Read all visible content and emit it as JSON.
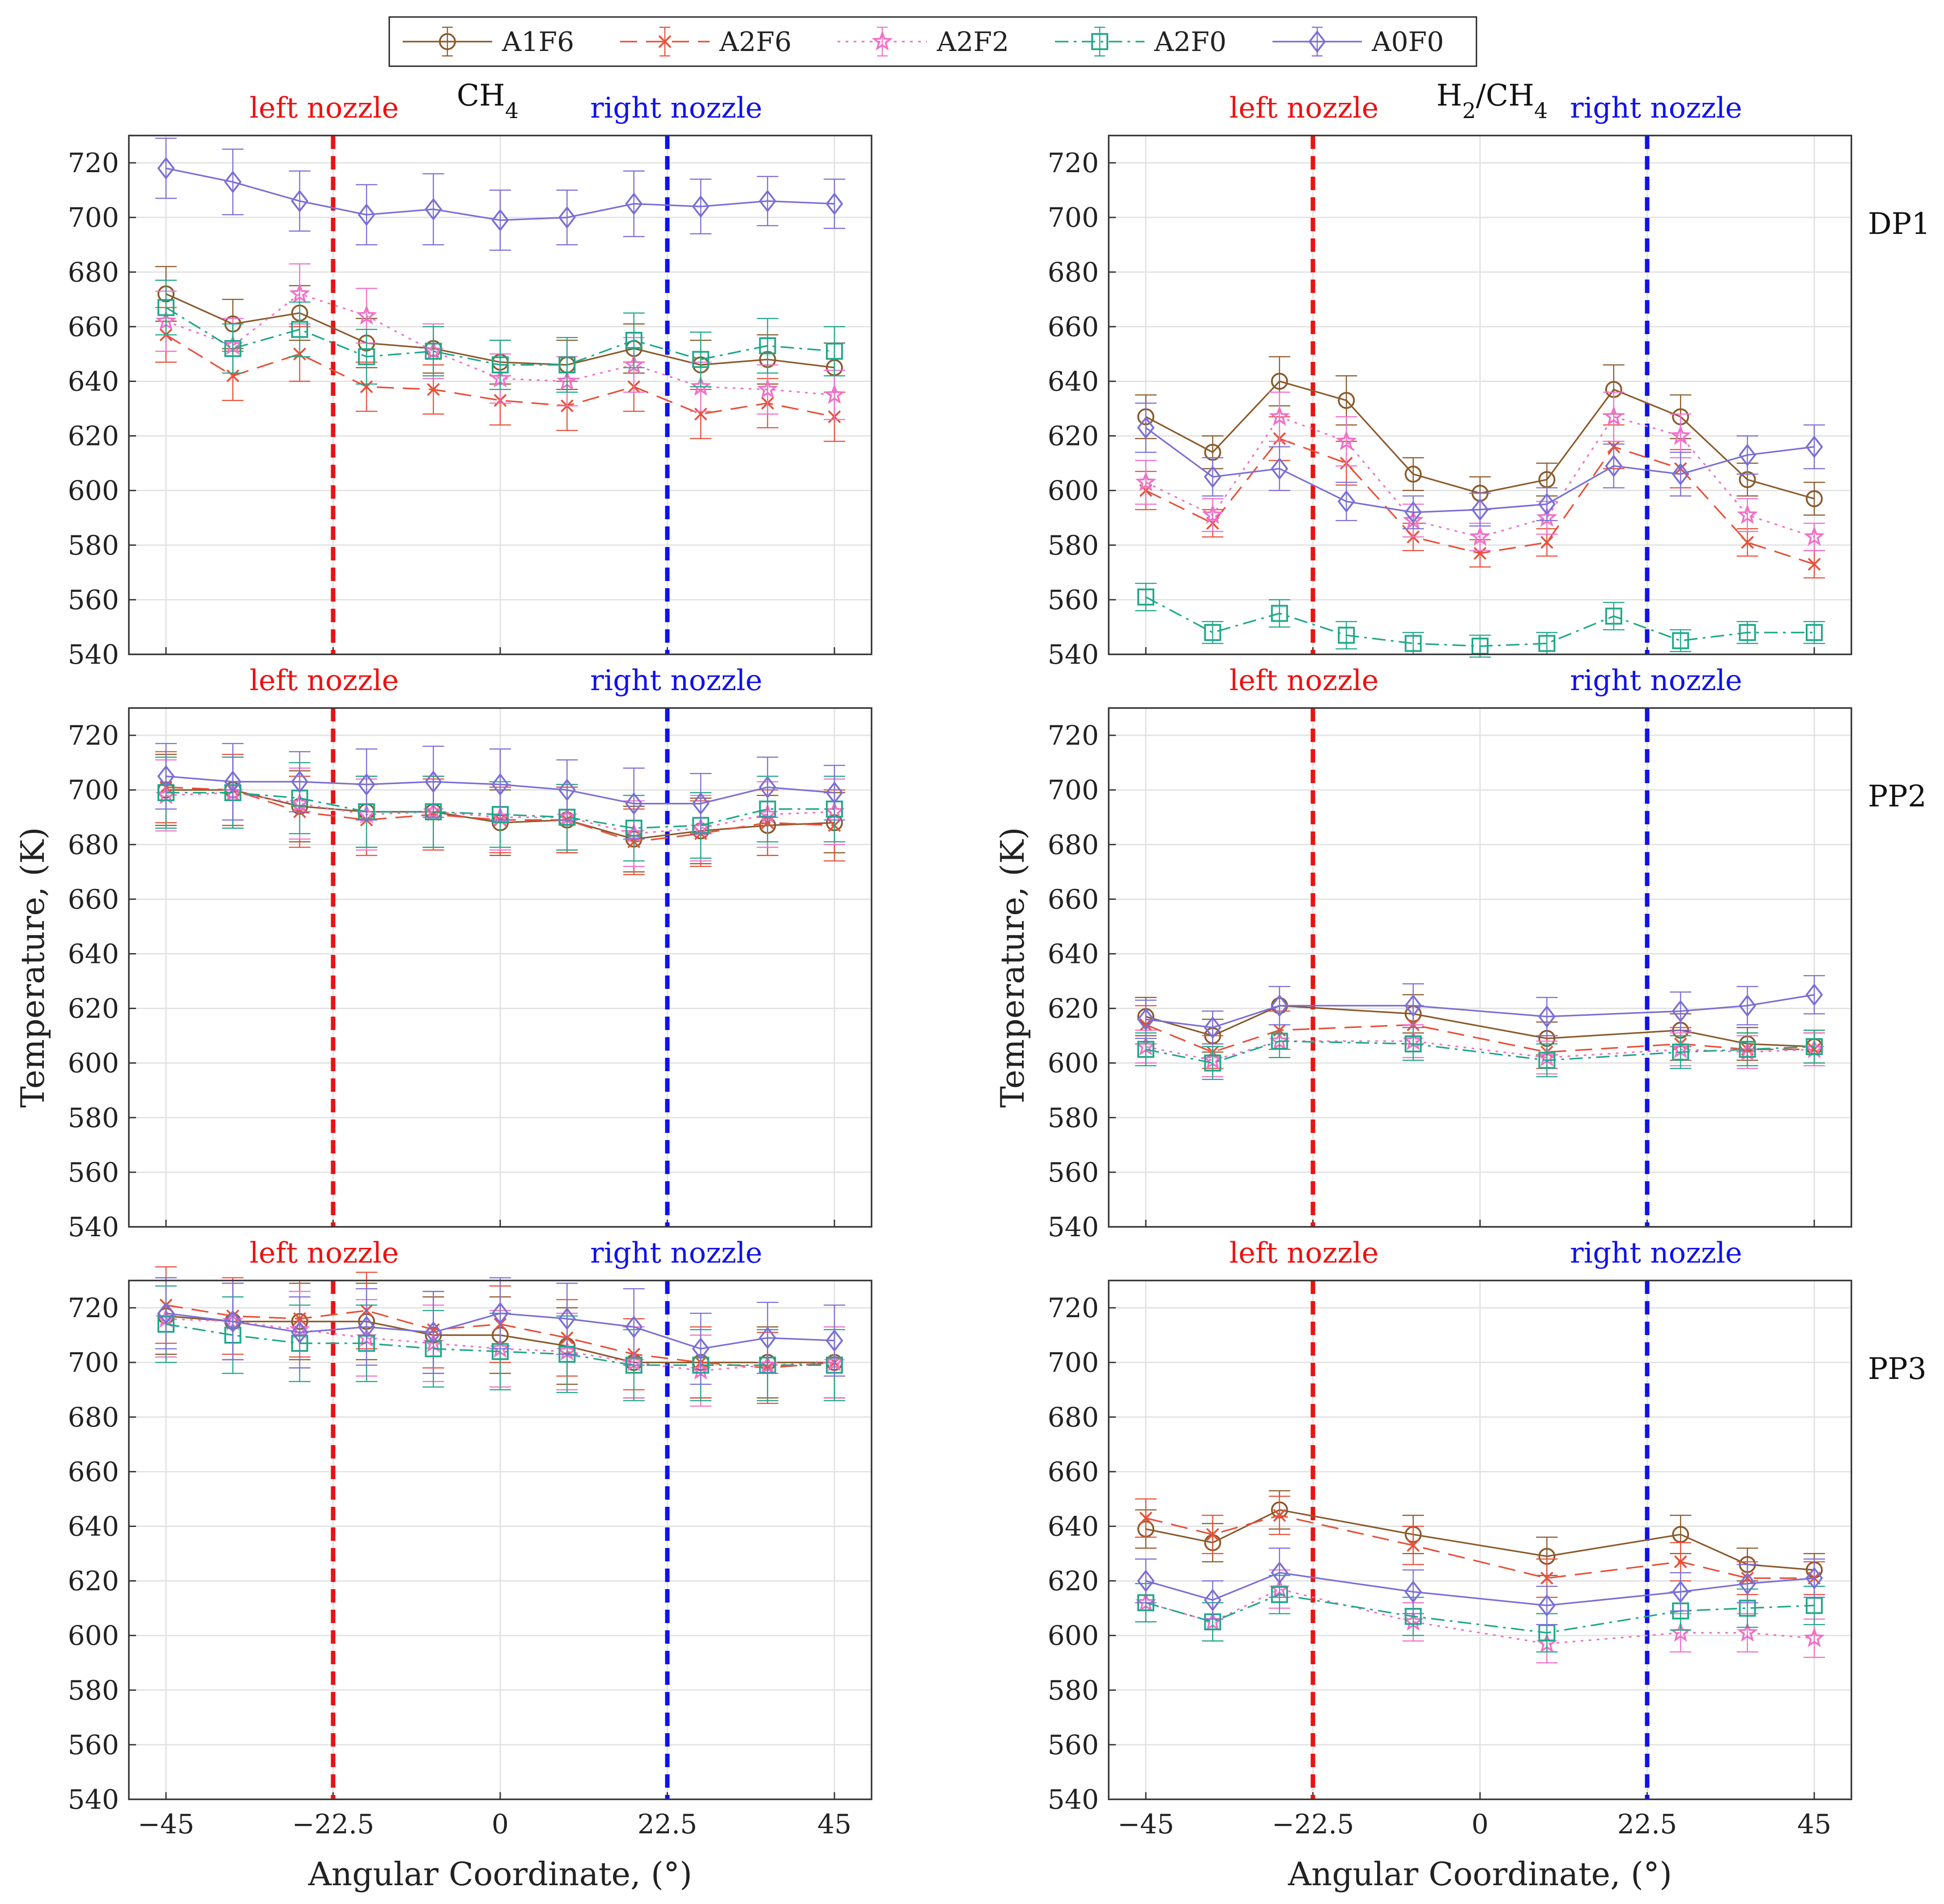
{
  "chart_data": {
    "type": "line",
    "legend": {
      "placement": "top-center",
      "entries": [
        {
          "name": "A1F6",
          "color": "#8B5A2B",
          "dash": "solid",
          "marker": "circle"
        },
        {
          "name": "A2F6",
          "color": "#E8503A",
          "dash": "longdash",
          "marker": "x"
        },
        {
          "name": "A2F2",
          "color": "#F070C8",
          "dash": "dotted",
          "marker": "star"
        },
        {
          "name": "A2F0",
          "color": "#1FA88A",
          "dash": "dashdot",
          "marker": "square"
        },
        {
          "name": "A0F0",
          "color": "#7B6FD6",
          "dash": "solid",
          "marker": "diamond"
        }
      ]
    },
    "columns": [
      "CH4",
      "H2/CH4"
    ],
    "rows": [
      "DP1",
      "PP2",
      "PP3"
    ],
    "nozzles": {
      "left_label": "left nozzle",
      "left_x": -22.5,
      "left_color": "#EE1111",
      "right_label": "right nozzle",
      "right_x": 22.5,
      "right_color": "#1111EE"
    },
    "xlabel": "Angular Coordinate, (°)",
    "ylabel": "Temperature, (K)",
    "xlim": [
      -50,
      50
    ],
    "ylim": [
      540,
      730
    ],
    "xticks": [
      -45,
      -22.5,
      0,
      22.5,
      45
    ],
    "xtick_labels": [
      "−45",
      "−22.5",
      "0",
      "22.5",
      "45"
    ],
    "yticks": [
      540,
      560,
      580,
      600,
      620,
      640,
      660,
      680,
      700,
      720
    ],
    "grid": true,
    "panels": [
      {
        "id": "ch4-dp1",
        "x": [
          -45,
          -36,
          -27,
          -18,
          -9,
          0,
          9,
          18,
          27,
          36,
          45
        ],
        "series": [
          {
            "name": "A1F6",
            "values": [
              672,
              661,
              665,
              654,
              652,
              647,
              646,
              652,
              646,
              648,
              645
            ],
            "err": [
              10,
              9,
              10,
              9,
              9,
              8,
              9,
              9,
              9,
              9,
              9
            ]
          },
          {
            "name": "A2F6",
            "values": [
              657,
              642,
              650,
              638,
              637,
              633,
              631,
              638,
              628,
              632,
              627
            ],
            "err": [
              10,
              9,
              10,
              9,
              9,
              9,
              9,
              9,
              9,
              9,
              9
            ]
          },
          {
            "name": "A2F2",
            "values": [
              662,
              653,
              672,
              664,
              651,
              641,
              640,
              646,
              638,
              637,
              635
            ],
            "err": [
              11,
              10,
              11,
              10,
              10,
              9,
              9,
              10,
              9,
              9,
              9
            ]
          },
          {
            "name": "A2F0",
            "values": [
              667,
              652,
              659,
              649,
              651,
              646,
              646,
              655,
              648,
              653,
              651
            ],
            "err": [
              10,
              9,
              10,
              10,
              9,
              9,
              10,
              10,
              10,
              10,
              9
            ]
          },
          {
            "name": "A0F0",
            "values": [
              718,
              713,
              706,
              701,
              703,
              699,
              700,
              705,
              704,
              706,
              705
            ],
            "err": [
              11,
              12,
              11,
              11,
              13,
              11,
              10,
              12,
              10,
              9,
              9
            ]
          }
        ]
      },
      {
        "id": "h2ch4-dp1",
        "x": [
          -45,
          -36,
          -27,
          -18,
          -9,
          0,
          9,
          18,
          27,
          36,
          45
        ],
        "series": [
          {
            "name": "A1F6",
            "values": [
              627,
              614,
              640,
              633,
              606,
              599,
              604,
              637,
              627,
              604,
              597
            ],
            "err": [
              8,
              6,
              9,
              9,
              6,
              6,
              6,
              9,
              8,
              6,
              6
            ]
          },
          {
            "name": "A2F6",
            "values": [
              600,
              588,
              619,
              610,
              583,
              577,
              581,
              616,
              608,
              581,
              573
            ],
            "err": [
              7,
              5,
              8,
              8,
              5,
              5,
              5,
              8,
              7,
              5,
              5
            ]
          },
          {
            "name": "A2F2",
            "values": [
              603,
              591,
              627,
              618,
              589,
              583,
              590,
              627,
              620,
              591,
              583
            ],
            "err": [
              8,
              6,
              9,
              9,
              6,
              5,
              6,
              9,
              8,
              6,
              5
            ]
          },
          {
            "name": "A2F0",
            "values": [
              561,
              548,
              555,
              547,
              544,
              543,
              544,
              554,
              545,
              548,
              548
            ],
            "err": [
              5,
              4,
              5,
              5,
              4,
              4,
              4,
              5,
              4,
              4,
              4
            ]
          },
          {
            "name": "A0F0",
            "values": [
              623,
              605,
              608,
              596,
              592,
              593,
              595,
              609,
              606,
              613,
              616
            ],
            "err": [
              9,
              7,
              8,
              7,
              6,
              6,
              6,
              8,
              8,
              7,
              8
            ]
          }
        ]
      },
      {
        "id": "ch4-pp2",
        "x": [
          -45,
          -36,
          -27,
          -18,
          -9,
          0,
          9,
          18,
          27,
          36,
          45
        ],
        "series": [
          {
            "name": "A1F6",
            "values": [
              700,
              700,
              694,
              692,
              692,
              688,
              689,
              682,
              685,
              687,
              688
            ],
            "err": [
              13,
              13,
              13,
              13,
              13,
              12,
              12,
              12,
              12,
              11,
              11
            ]
          },
          {
            "name": "A2F6",
            "values": [
              701,
              700,
              692,
              689,
              691,
              689,
              689,
              681,
              684,
              688,
              687
            ],
            "err": [
              13,
              13,
              13,
              13,
              13,
              12,
              12,
              12,
              12,
              12,
              13
            ]
          },
          {
            "name": "A2F2",
            "values": [
              698,
              699,
              695,
              691,
              692,
              690,
              690,
              684,
              686,
              691,
              692
            ],
            "err": [
              13,
              13,
              13,
              13,
              13,
              12,
              12,
              12,
              12,
              12,
              12
            ]
          },
          {
            "name": "A2F0",
            "values": [
              699,
              699,
              697,
              692,
              692,
              691,
              690,
              686,
              687,
              693,
              693
            ],
            "err": [
              13,
              13,
              13,
              13,
              13,
              12,
              12,
              12,
              12,
              12,
              12
            ]
          },
          {
            "name": "A0F0",
            "values": [
              705,
              703,
              703,
              702,
              703,
              702,
              700,
              695,
              695,
              701,
              699
            ],
            "err": [
              12,
              14,
              11,
              13,
              13,
              13,
              11,
              13,
              11,
              11,
              10
            ]
          }
        ]
      },
      {
        "id": "h2ch4-pp2",
        "x": [
          -45,
          -36,
          -27,
          -9,
          9,
          27,
          36,
          45
        ],
        "series": [
          {
            "name": "A1F6",
            "values": [
              617,
              610,
              621,
              618,
              609,
              612,
              607,
              606
            ],
            "err": [
              7,
              6,
              7,
              7,
              6,
              6,
              6,
              6
            ]
          },
          {
            "name": "A2F6",
            "values": [
              614,
              604,
              612,
              614,
              604,
              607,
              605,
              605
            ],
            "err": [
              7,
              6,
              7,
              7,
              6,
              6,
              6,
              6
            ]
          },
          {
            "name": "A2F2",
            "values": [
              606,
              601,
              608,
              608,
              602,
              605,
              604,
              605
            ],
            "err": [
              6,
              6,
              6,
              6,
              6,
              6,
              6,
              6
            ]
          },
          {
            "name": "A2F0",
            "values": [
              605,
              600,
              608,
              607,
              601,
              604,
              605,
              606
            ],
            "err": [
              6,
              6,
              6,
              6,
              6,
              6,
              6,
              6
            ]
          },
          {
            "name": "A0F0",
            "values": [
              616,
              613,
              621,
              621,
              617,
              619,
              621,
              625
            ],
            "err": [
              7,
              6,
              7,
              8,
              7,
              7,
              7,
              7
            ]
          }
        ]
      },
      {
        "id": "ch4-pp3",
        "x": [
          -45,
          -36,
          -27,
          -18,
          -9,
          0,
          9,
          18,
          27,
          36,
          45
        ],
        "series": [
          {
            "name": "A1F6",
            "values": [
              717,
              715,
              715,
              715,
              710,
              710,
              706,
              700,
              700,
              700,
              700
            ],
            "err": [
              14,
              14,
              14,
              14,
              14,
              14,
              14,
              13,
              13,
              13,
              13
            ]
          },
          {
            "name": "A2F6",
            "values": [
              721,
              717,
              716,
              719,
              712,
              714,
              709,
              703,
              700,
              698,
              700
            ],
            "err": [
              14,
              14,
              14,
              14,
              14,
              14,
              14,
              13,
              13,
              13,
              13
            ]
          },
          {
            "name": "A2F2",
            "values": [
              716,
              715,
              712,
              709,
              707,
              705,
              704,
              700,
              697,
              699,
              700
            ],
            "err": [
              14,
              14,
              14,
              14,
              14,
              14,
              14,
              13,
              13,
              13,
              13
            ]
          },
          {
            "name": "A2F0",
            "values": [
              714,
              710,
              707,
              707,
              705,
              704,
              703,
              699,
              699,
              699,
              699
            ],
            "err": [
              14,
              14,
              14,
              14,
              14,
              14,
              14,
              13,
              13,
              13,
              13
            ]
          },
          {
            "name": "A0F0",
            "values": [
              718,
              715,
              711,
              713,
              711,
              718,
              716,
              713,
              705,
              709,
              708
            ],
            "err": [
              13,
              14,
              13,
              14,
              15,
              13,
              13,
              14,
              13,
              13,
              13
            ]
          }
        ]
      },
      {
        "id": "h2ch4-pp3",
        "x": [
          -45,
          -36,
          -27,
          -9,
          9,
          27,
          36,
          45
        ],
        "series": [
          {
            "name": "A1F6",
            "values": [
              639,
              634,
              646,
              637,
              629,
              637,
              626,
              624
            ],
            "err": [
              7,
              7,
              7,
              7,
              7,
              7,
              6,
              6
            ]
          },
          {
            "name": "A2F6",
            "values": [
              643,
              637,
              644,
              633,
              621,
              627,
              621,
              621
            ],
            "err": [
              7,
              7,
              7,
              7,
              7,
              7,
              6,
              6
            ]
          },
          {
            "name": "A2F2",
            "values": [
              612,
              605,
              617,
              605,
              597,
              601,
              601,
              599
            ],
            "err": [
              7,
              7,
              7,
              7,
              7,
              7,
              7,
              7
            ]
          },
          {
            "name": "A2F0",
            "values": [
              612,
              605,
              615,
              607,
              601,
              609,
              610,
              611
            ],
            "err": [
              7,
              7,
              7,
              7,
              7,
              7,
              7,
              7
            ]
          },
          {
            "name": "A0F0",
            "values": [
              620,
              613,
              623,
              616,
              611,
              616,
              619,
              621
            ],
            "err": [
              8,
              7,
              9,
              8,
              7,
              7,
              7,
              7
            ]
          }
        ]
      }
    ]
  }
}
